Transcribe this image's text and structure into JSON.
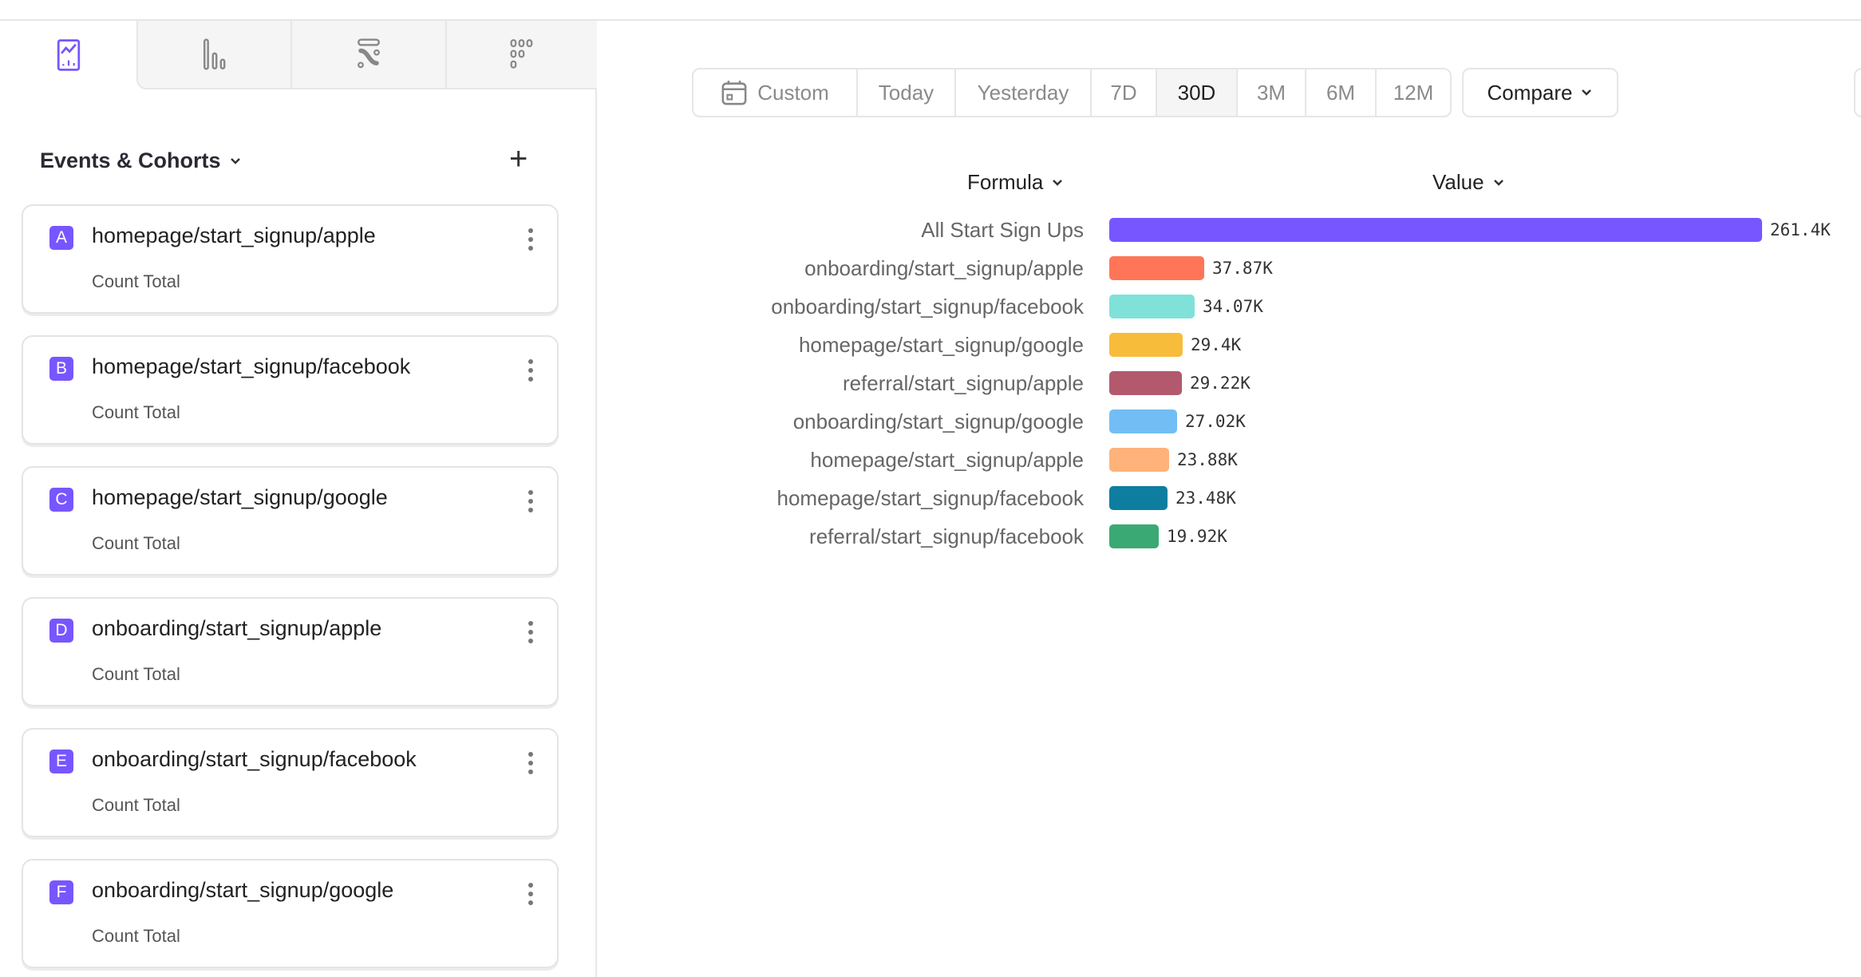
{
  "tabs": [
    {
      "icon": "insights-chart-icon",
      "active": true
    },
    {
      "icon": "funnel-bars-icon"
    },
    {
      "icon": "flows-icon"
    },
    {
      "icon": "retention-dots-icon"
    }
  ],
  "sidebar": {
    "section_title": "Events & Cohorts",
    "items": [
      {
        "letter": "A",
        "name": "homepage/start_signup/apple",
        "metric": "Count Total"
      },
      {
        "letter": "B",
        "name": "homepage/start_signup/facebook",
        "metric": "Count Total"
      },
      {
        "letter": "C",
        "name": "homepage/start_signup/google",
        "metric": "Count Total"
      },
      {
        "letter": "D",
        "name": "onboarding/start_signup/apple",
        "metric": "Count Total"
      },
      {
        "letter": "E",
        "name": "onboarding/start_signup/facebook",
        "metric": "Count Total"
      },
      {
        "letter": "F",
        "name": "onboarding/start_signup/google",
        "metric": "Count Total"
      }
    ]
  },
  "toolbar": {
    "ranges": [
      "Custom",
      "Today",
      "Yesterday",
      "7D",
      "30D",
      "3M",
      "6M",
      "12M"
    ],
    "selected": "30D",
    "compare_label": "Compare"
  },
  "table": {
    "col_formula": "Formula",
    "col_value": "Value"
  },
  "chart_data": {
    "type": "bar",
    "orientation": "horizontal",
    "categories": [
      "All Start Sign Ups",
      "onboarding/start_signup/apple",
      "onboarding/start_signup/facebook",
      "homepage/start_signup/google",
      "referral/start_signup/apple",
      "onboarding/start_signup/google",
      "homepage/start_signup/apple",
      "homepage/start_signup/facebook",
      "referral/start_signup/facebook"
    ],
    "values": [
      261400,
      37870,
      34070,
      29400,
      29220,
      27020,
      23880,
      23480,
      19920
    ],
    "labels": [
      "261.4K",
      "37.87K",
      "34.07K",
      "29.4K",
      "29.22K",
      "27.02K",
      "23.88K",
      "23.48K",
      "19.92K"
    ],
    "colors": [
      "#7856FF",
      "#FF7557",
      "#80E1D9",
      "#F8BC3B",
      "#B2596E",
      "#72BEF4",
      "#FFB27A",
      "#0D7EA0",
      "#3BA974"
    ]
  }
}
